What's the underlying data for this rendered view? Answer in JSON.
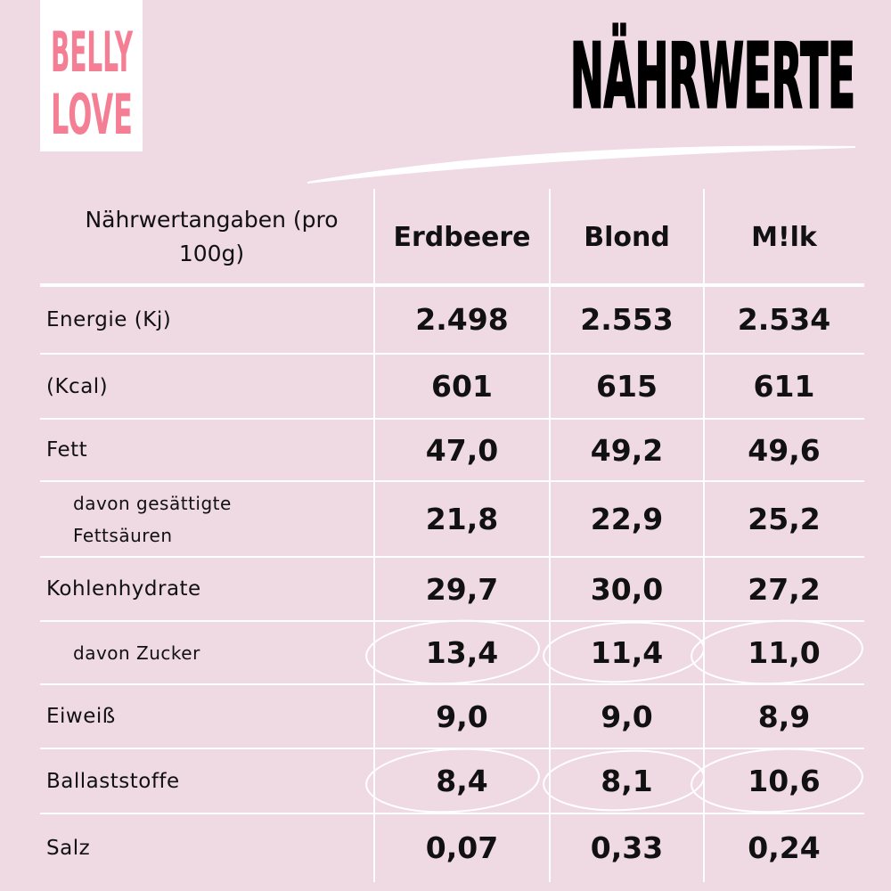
{
  "header": {
    "logo": [
      "BELLY",
      "LOVE"
    ],
    "title": "NÄHRWERTE"
  },
  "table": {
    "columns": [
      "Nährwertangaben (pro 100g)",
      "Erdbeere",
      "Blond",
      "M!lk"
    ],
    "rows": [
      [
        "Energie (Kj)",
        "2.498",
        "2.553",
        "2.534"
      ],
      [
        "(Kcal)",
        "601",
        "615",
        "611"
      ],
      [
        "Fett",
        "47,0",
        "49,2",
        "49,6"
      ],
      [
        "davon gesättigte Fettsäuren",
        "21,8",
        "22,9",
        "25,2"
      ],
      [
        "Kohlenhydrate",
        "29,7",
        "30,0",
        "27,2"
      ],
      [
        "davon Zucker",
        "13,4",
        "11,4",
        "11,0"
      ],
      [
        "Eiweiß",
        "9,0",
        "9,0",
        "8,9"
      ],
      [
        "Ballaststoffe",
        "8,4",
        "8,1",
        "10,6"
      ],
      [
        "Salz",
        "0,07",
        "0,33",
        "0,24"
      ]
    ]
  }
}
